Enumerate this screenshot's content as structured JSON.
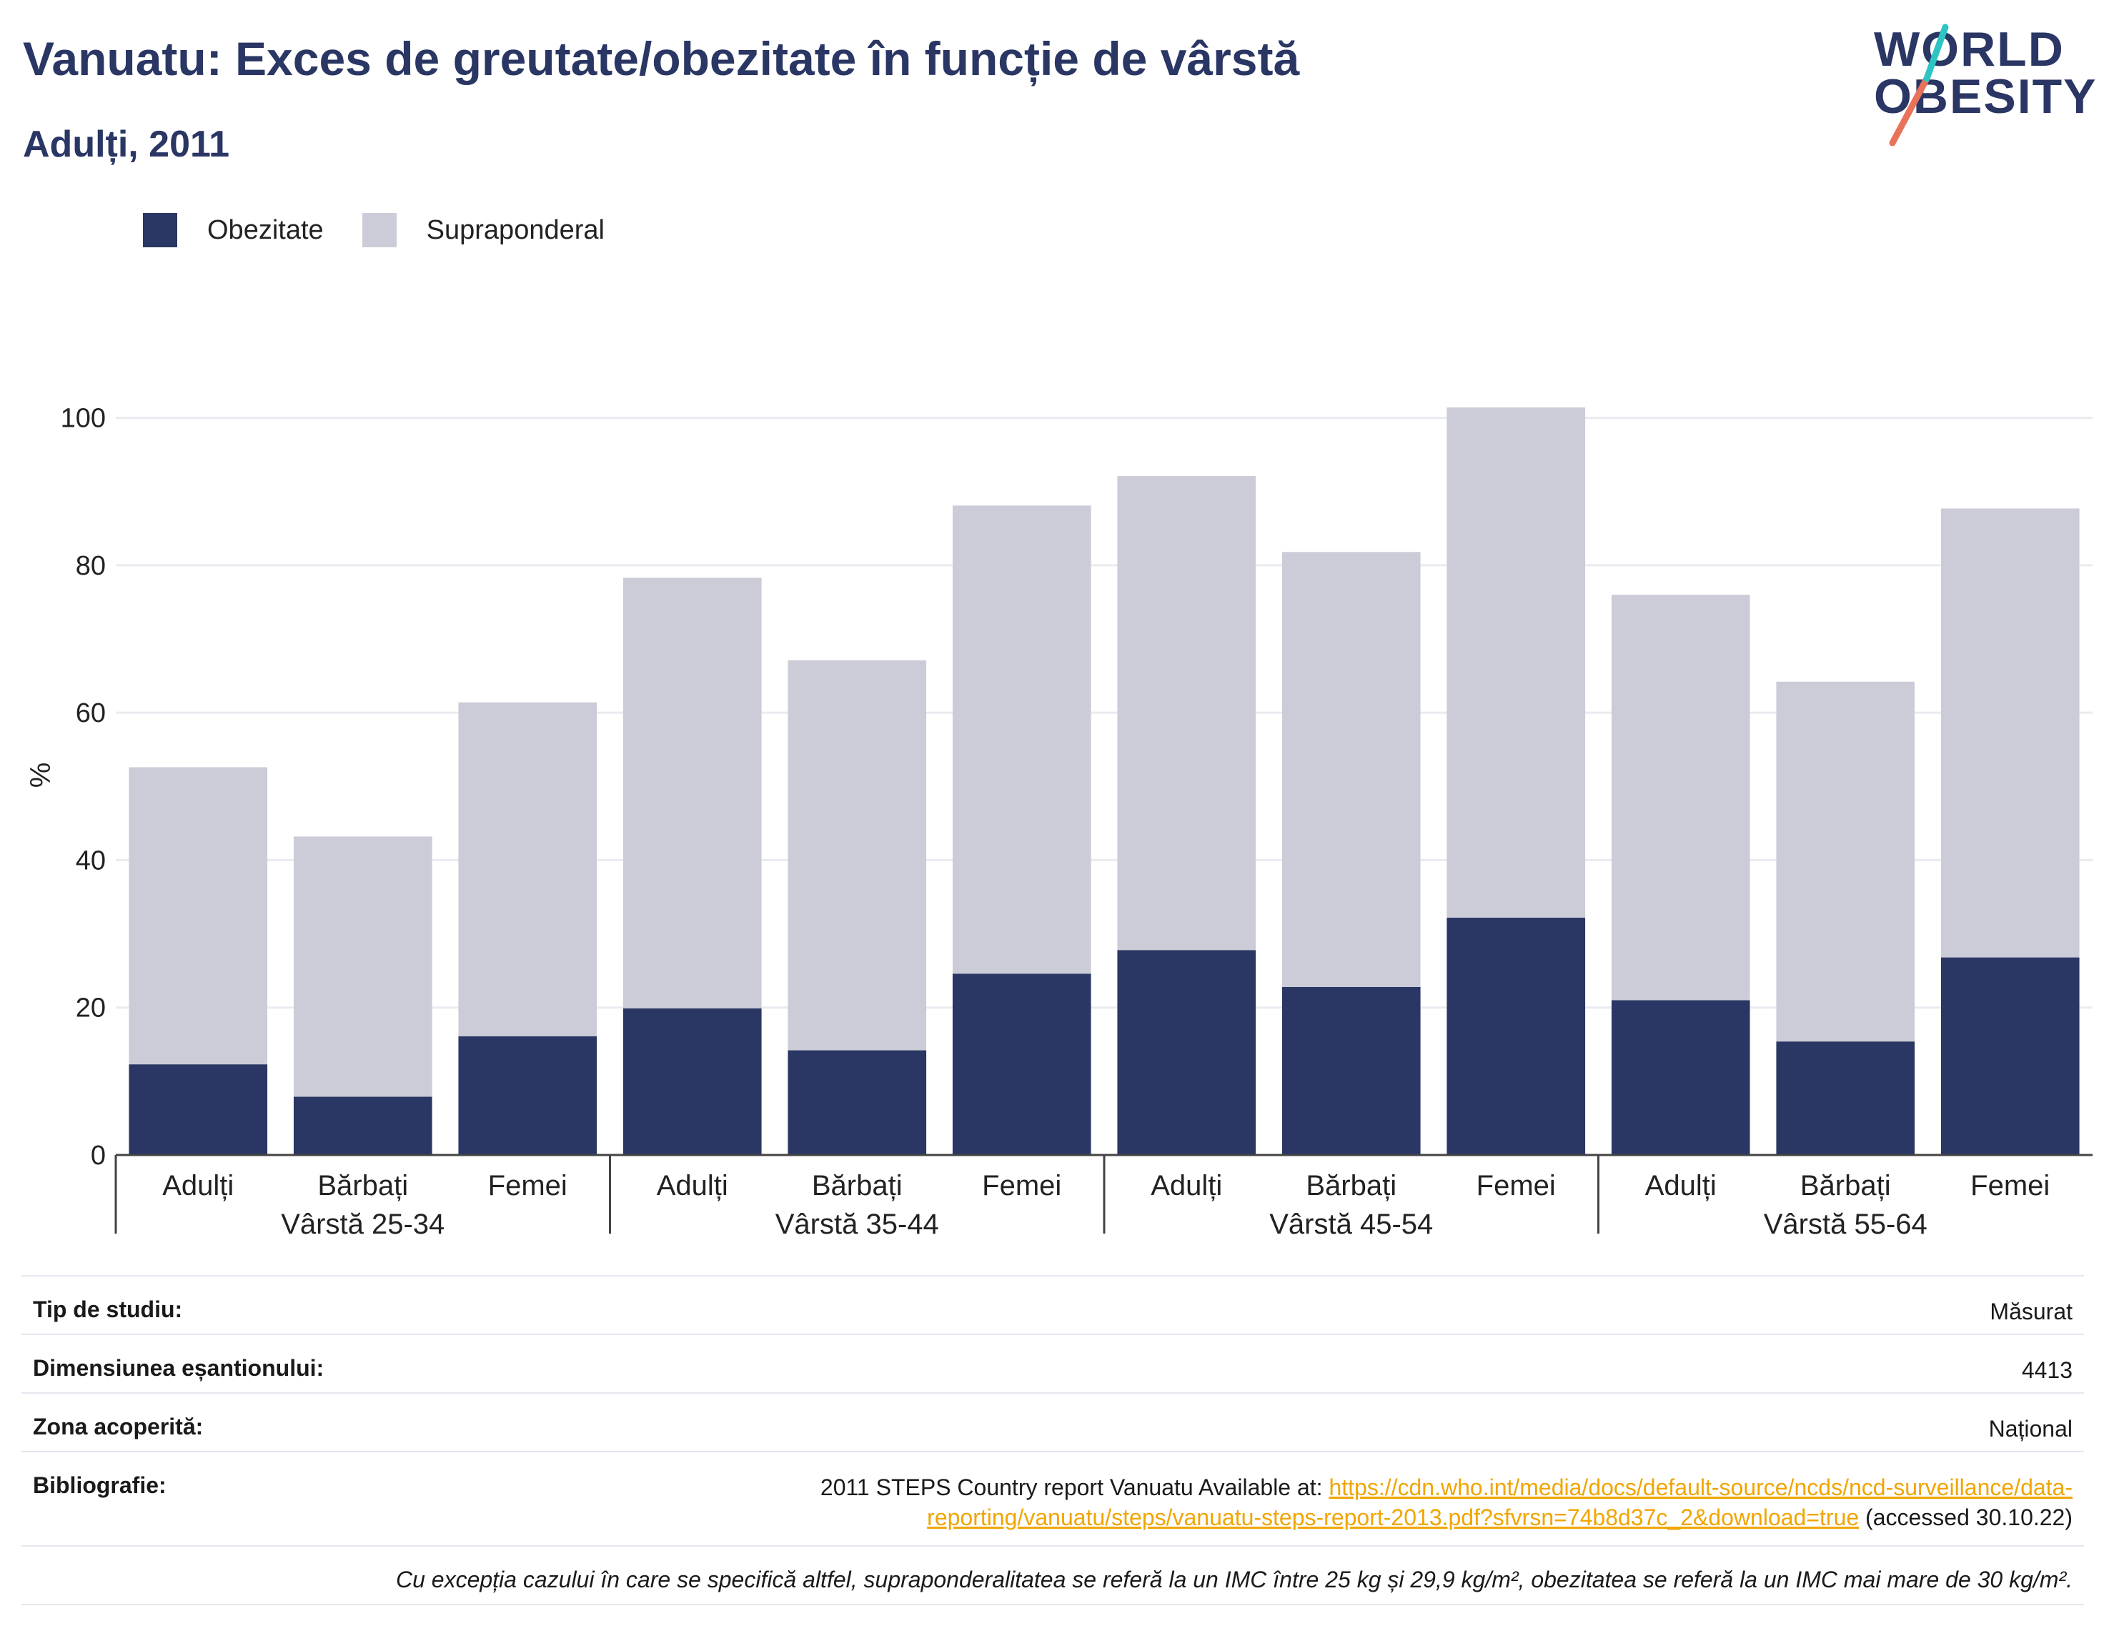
{
  "header": {
    "title": "Vanuatu: Exces de greutate/obezitate în funcție de vârstă",
    "subtitle": "Adulți, 2011"
  },
  "logo": {
    "line1": "WORLD",
    "line2": "OBESITY"
  },
  "legend": [
    {
      "label": "Obezitate",
      "color": "#2a3663"
    },
    {
      "label": "Supraponderal",
      "color": "#cbccd7"
    }
  ],
  "chart_data": {
    "type": "bar",
    "stacked": true,
    "ylabel": "%",
    "xlabel": "",
    "ylim": [
      0,
      105
    ],
    "yticks": [
      0,
      20,
      40,
      60,
      80,
      100
    ],
    "grid": true,
    "legend_position": "top-left",
    "groups": [
      "Vârstă 25-34",
      "Vârstă 35-44",
      "Vârstă 45-54",
      "Vârstă 55-64"
    ],
    "categories": [
      "Adulți",
      "Bărbați",
      "Femei",
      "Adulți",
      "Bărbați",
      "Femei",
      "Adulți",
      "Bărbați",
      "Femei",
      "Adulți",
      "Bărbați",
      "Femei"
    ],
    "series": [
      {
        "name": "Obezitate",
        "color": "#2a3663",
        "values": [
          12.3,
          7.9,
          16.1,
          19.9,
          14.2,
          24.6,
          27.8,
          22.8,
          32.2,
          21.0,
          15.4,
          26.8
        ]
      },
      {
        "name": "Supraponderal",
        "color": "#cbccd7",
        "values": [
          40.3,
          35.3,
          45.3,
          58.4,
          52.9,
          63.5,
          64.3,
          59.0,
          69.2,
          55.0,
          48.8,
          60.9
        ]
      }
    ]
  },
  "info": {
    "rows": [
      {
        "key": "Tip de studiu:",
        "value": "Măsurat"
      },
      {
        "key": "Dimensiunea eșantionului:",
        "value": "4413"
      },
      {
        "key": "Zona acoperită:",
        "value": "Național"
      }
    ],
    "bibliography": {
      "key": "Bibliografie:",
      "prefix": "2011 STEPS Country report Vanuatu Available at: ",
      "link_line1": "https://cdn.who.int/media/docs/default-source/ncds/ncd-surveillance/data-",
      "link_line2": "reporting/vanuatu/steps/vanuatu-steps-report-2013.pdf?sfvrsn=74b8d37c_2&download=true",
      "suffix": " (accessed 30.10.22)"
    },
    "note": "Cu excepția cazului în care se specifică altfel, supraponderalitatea se referă la un IMC între 25 kg și 29,9 kg/m², obezitatea se referă la un IMC mai mare de 30 kg/m²."
  }
}
